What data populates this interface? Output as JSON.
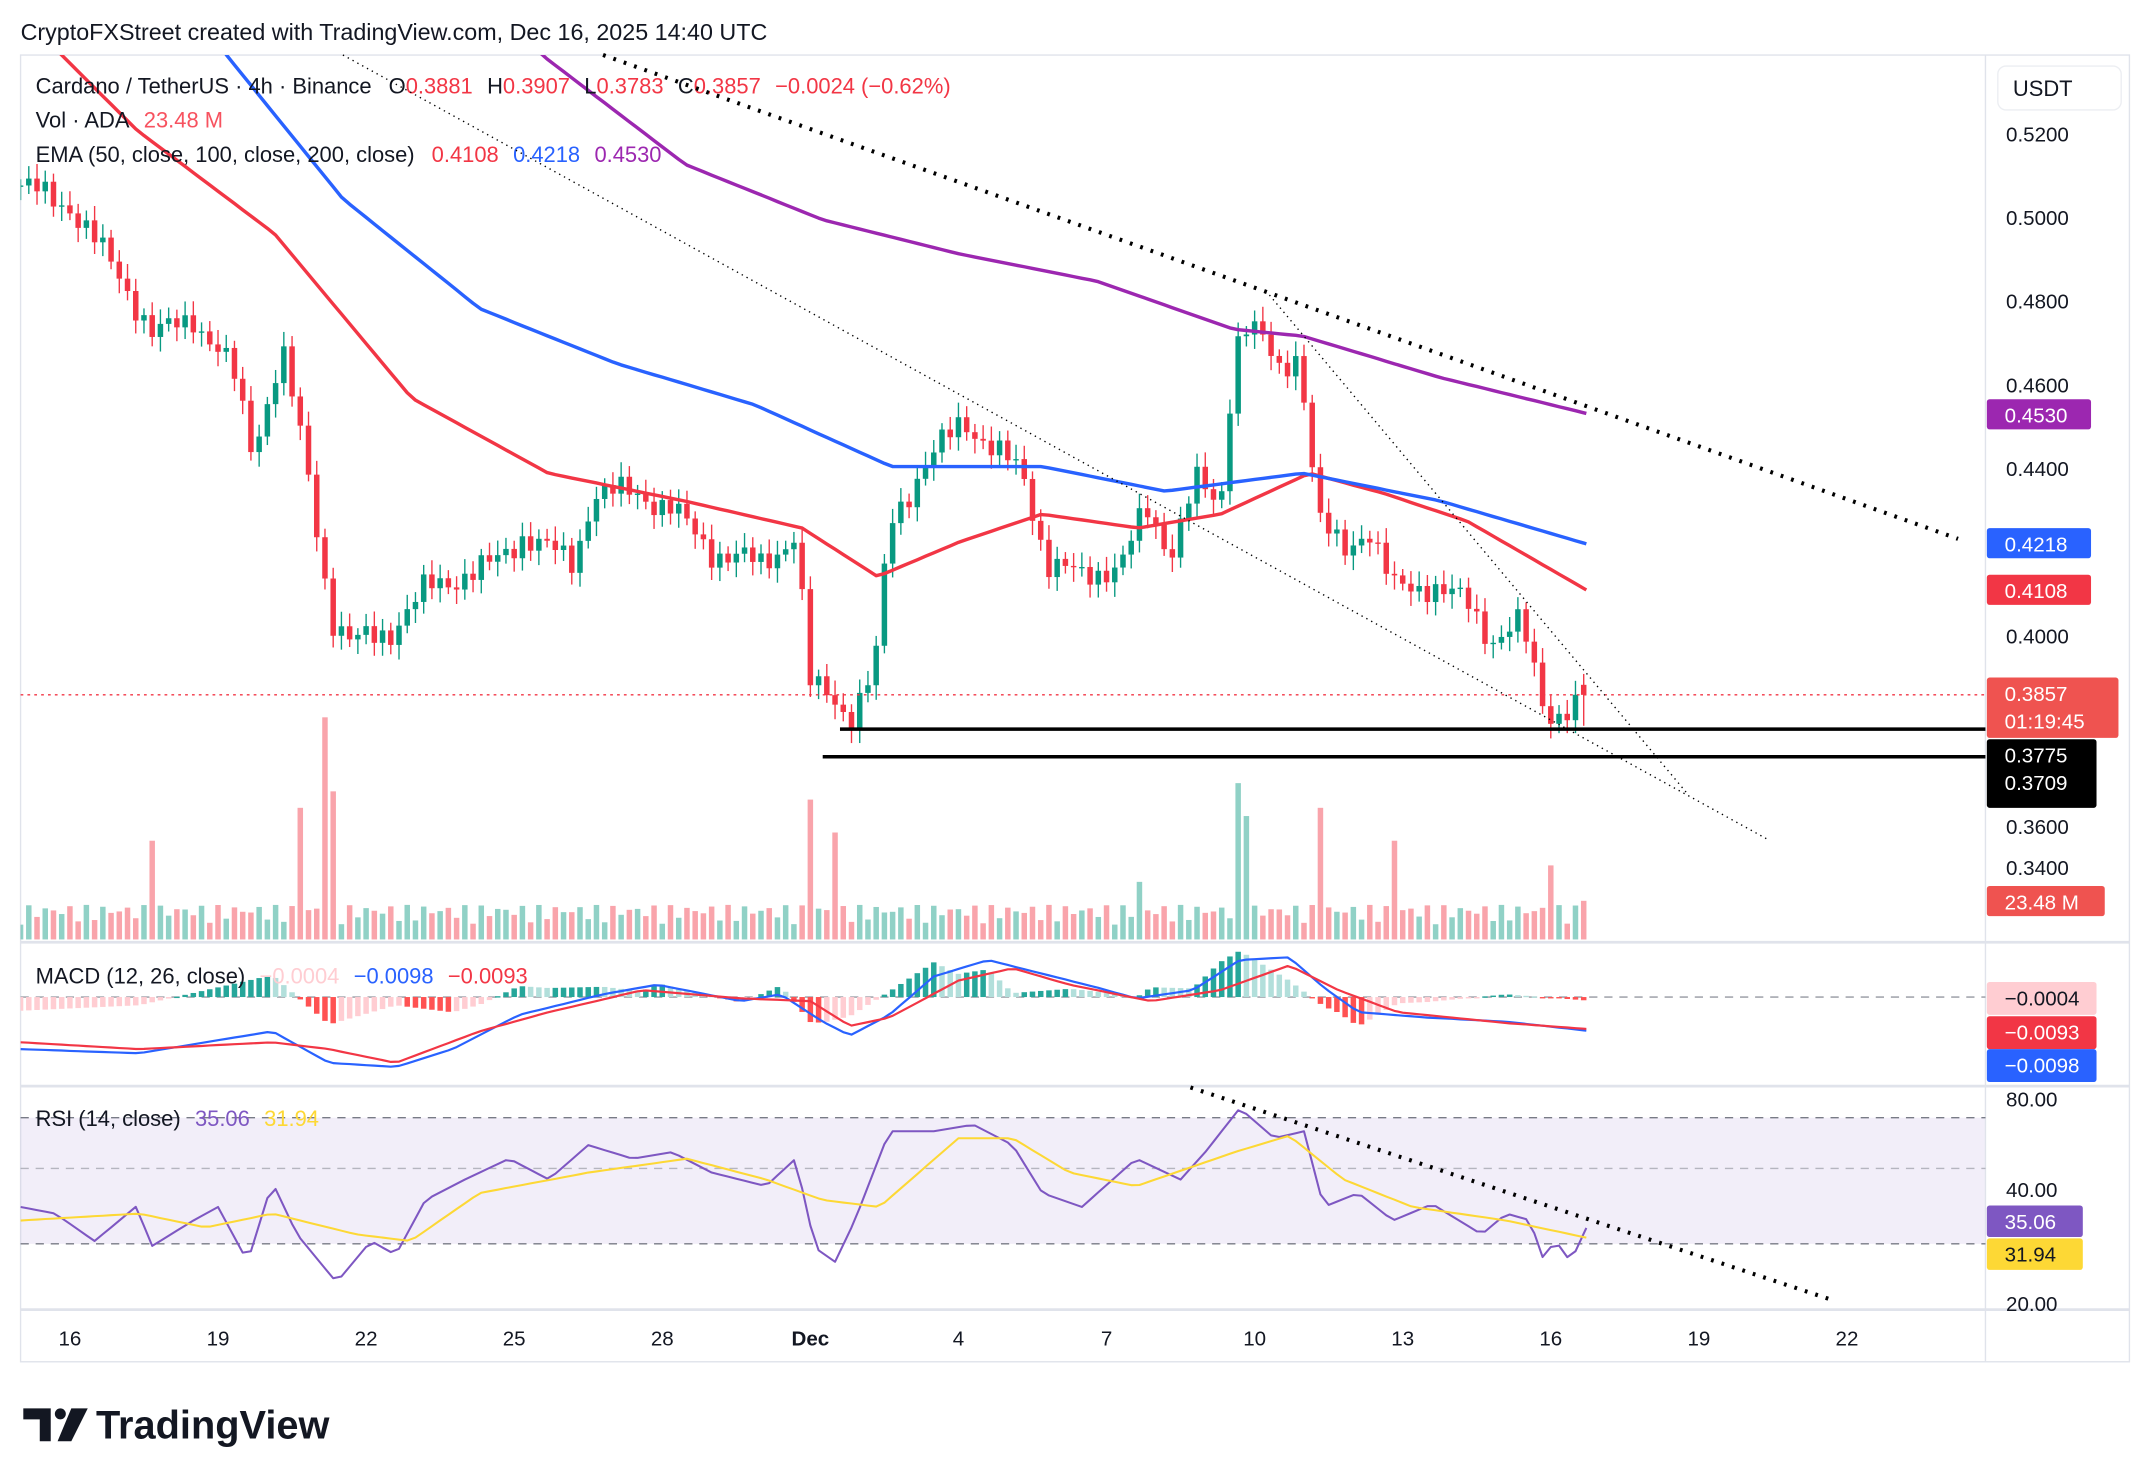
{
  "header": "CryptoFXStreet created with TradingView.com, Dec 16, 2025 14:40 UTC",
  "watermark": "TradingView",
  "currency": "USDT",
  "legend": {
    "symbol": "Cardano / TetherUS · 4h · Binance",
    "o_label": "O",
    "o": "0.3881",
    "h_label": "H",
    "h": "0.3907",
    "l_label": "L",
    "l": "0.3783",
    "c_label": "C",
    "c": "0.3857",
    "change": "−0.0024 (−0.62%)",
    "vol_label": "Vol · ADA",
    "vol": "23.48 M",
    "ema_label": "EMA (50, close, 100, close, 200, close)",
    "ema50": "0.4108",
    "ema100": "0.4218",
    "ema200": "0.4530",
    "macd_label": "MACD (12, 26, close)",
    "macd_hist": "−0.0004",
    "macd": "−0.0098",
    "macd_signal": "−0.0093",
    "rsi_label": "RSI (14, close)",
    "rsi": "35.06",
    "rsi_ma": "31.94"
  },
  "colors": {
    "up": "#089981",
    "down": "#f23645",
    "ema50": "#f23645",
    "ema100": "#2962ff",
    "ema200": "#9c27b0",
    "macd": "#2962ff",
    "signal": "#f23645",
    "rsi": "#7e57c2",
    "rsi_ma": "#fdd835"
  },
  "chart_data": {
    "type": "candlestick",
    "title": "Cardano / TetherUS · 4h · Binance",
    "x_unit": "days since Nov 15, 2025",
    "candles_per_day": 6,
    "price_ylim": [
      0.33,
      0.53
    ],
    "price_ticks": [
      "0.5200",
      "0.5000",
      "0.4800",
      "0.4600",
      "0.4400",
      "0.4000",
      "0.3600",
      "0.3400"
    ],
    "x_ticks": [
      {
        "day": 1,
        "label": "16"
      },
      {
        "day": 4,
        "label": "19"
      },
      {
        "day": 7,
        "label": "22"
      },
      {
        "day": 10,
        "label": "25"
      },
      {
        "day": 13,
        "label": "28"
      },
      {
        "day": 16,
        "label": "Dec"
      },
      {
        "day": 19,
        "label": "4"
      },
      {
        "day": 22,
        "label": "7"
      },
      {
        "day": 25,
        "label": "10"
      },
      {
        "day": 28,
        "label": "13"
      },
      {
        "day": 31,
        "label": "16"
      },
      {
        "day": 34,
        "label": "19"
      },
      {
        "day": 37,
        "label": "22"
      }
    ],
    "price_path": [
      [
        0,
        0.5075
      ],
      [
        1,
        0.5026
      ],
      [
        2,
        0.486
      ],
      [
        2.7,
        0.4715
      ],
      [
        3.5,
        0.476
      ],
      [
        4.3,
        0.463
      ],
      [
        4.7,
        0.444
      ],
      [
        5.3,
        0.468
      ],
      [
        5.8,
        0.44
      ],
      [
        6.3,
        0.404
      ],
      [
        6.7,
        0.398
      ],
      [
        7.5,
        0.401
      ],
      [
        8.2,
        0.411
      ],
      [
        9.6,
        0.417
      ],
      [
        10.2,
        0.424
      ],
      [
        11.2,
        0.417
      ],
      [
        11.6,
        0.434
      ],
      [
        12.5,
        0.434
      ],
      [
        13.2,
        0.43
      ],
      [
        14,
        0.42
      ],
      [
        15,
        0.417
      ],
      [
        15.7,
        0.424
      ],
      [
        16.0,
        0.388
      ],
      [
        16.5,
        0.385
      ],
      [
        16.8,
        0.38
      ],
      [
        17.3,
        0.391
      ],
      [
        17.6,
        0.427
      ],
      [
        18.3,
        0.44
      ],
      [
        19.1,
        0.452
      ],
      [
        19.7,
        0.444
      ],
      [
        20.3,
        0.439
      ],
      [
        20.8,
        0.417
      ],
      [
        21.5,
        0.414
      ],
      [
        22.3,
        0.417
      ],
      [
        22.8,
        0.43
      ],
      [
        23.3,
        0.42
      ],
      [
        23.8,
        0.437
      ],
      [
        24.3,
        0.43
      ],
      [
        24.6,
        0.47
      ],
      [
        24.9,
        0.475
      ],
      [
        25.5,
        0.463
      ],
      [
        25.9,
        0.468
      ],
      [
        26.3,
        0.427
      ],
      [
        26.8,
        0.42
      ],
      [
        27.3,
        0.426
      ],
      [
        27.8,
        0.411
      ],
      [
        28.6,
        0.412
      ],
      [
        29.3,
        0.4075
      ],
      [
        29.8,
        0.399
      ],
      [
        30.4,
        0.403
      ],
      [
        30.8,
        0.385
      ],
      [
        31.0,
        0.381
      ],
      [
        31.5,
        0.383
      ],
      [
        31.72,
        0.3857
      ]
    ],
    "last_candle": {
      "open": 0.3881,
      "high": 0.3907,
      "low": 0.3783,
      "close": 0.3857
    },
    "ema50": [
      [
        0,
        0.5485
      ],
      [
        2.36,
        0.5207
      ],
      [
        5.14,
        0.496
      ],
      [
        7.92,
        0.4567
      ],
      [
        10.69,
        0.4387
      ],
      [
        13.47,
        0.432
      ],
      [
        15.83,
        0.4256
      ],
      [
        17.36,
        0.414
      ],
      [
        19.03,
        0.4223
      ],
      [
        20.69,
        0.4289
      ],
      [
        22.64,
        0.4256
      ],
      [
        24.31,
        0.4289
      ],
      [
        26.11,
        0.4387
      ],
      [
        27.64,
        0.4338
      ],
      [
        29.31,
        0.4272
      ],
      [
        31.72,
        0.4108
      ]
    ],
    "ema100": [
      [
        2.5,
        0.575
      ],
      [
        4.17,
        0.5387
      ],
      [
        6.53,
        0.5043
      ],
      [
        9.31,
        0.478
      ],
      [
        12.08,
        0.4649
      ],
      [
        14.86,
        0.4551
      ],
      [
        17.64,
        0.4403
      ],
      [
        20.69,
        0.4403
      ],
      [
        23.19,
        0.4344
      ],
      [
        25.97,
        0.4387
      ],
      [
        28.75,
        0.4321
      ],
      [
        31.72,
        0.4218
      ]
    ],
    "ema200": [
      [
        9,
        0.56
      ],
      [
        10.56,
        0.5387
      ],
      [
        13.47,
        0.5125
      ],
      [
        16.25,
        0.4993
      ],
      [
        19.03,
        0.4911
      ],
      [
        21.81,
        0.4846
      ],
      [
        24.58,
        0.4731
      ],
      [
        25.97,
        0.4715
      ],
      [
        28.75,
        0.4616
      ],
      [
        31.72,
        0.453
      ]
    ],
    "volume": {
      "base_m": 15,
      "last_m": 23.48,
      "spikes": [
        [
          2.6,
          60
        ],
        [
          5.7,
          80
        ],
        [
          6.2,
          135
        ],
        [
          6.4,
          90
        ],
        [
          16.0,
          85
        ],
        [
          16.5,
          65
        ],
        [
          22.6,
          35
        ],
        [
          24.6,
          95
        ],
        [
          24.9,
          75
        ],
        [
          26.3,
          80
        ],
        [
          27.8,
          60
        ],
        [
          31.0,
          45
        ]
      ]
    },
    "trendlines": [
      {
        "style": "dotted-thick",
        "from": [
          11.8,
          0.5387
        ],
        "to": [
          39.25,
          0.423
        ]
      },
      {
        "style": "dotted-thin",
        "from": [
          6.53,
          0.5387
        ],
        "to": [
          35.4,
          0.3511
        ]
      },
      {
        "style": "dotted-thin",
        "from": [
          25.3,
          0.4813
        ],
        "to": [
          33.75,
          0.3623
        ]
      }
    ],
    "support_levels": [
      {
        "price": 0.3775,
        "label": "0.3775",
        "from_day": 16.6
      },
      {
        "price": 0.3709,
        "label": "0.3709",
        "from_day": 16.25
      }
    ],
    "current_price": {
      "label": "0.3857",
      "countdown": "01:19:45"
    },
    "macd": {
      "ylim": [
        -0.0235,
        0.0155
      ],
      "macd_line": [
        [
          0,
          -0.0152
        ],
        [
          2.4,
          -0.0164
        ],
        [
          3.75,
          -0.0132
        ],
        [
          5.1,
          -0.01
        ],
        [
          6.25,
          -0.0192
        ],
        [
          7.6,
          -0.0204
        ],
        [
          8.75,
          -0.0152
        ],
        [
          10.1,
          -0.0052
        ],
        [
          11.8,
          0.0008
        ],
        [
          12.9,
          0.0036
        ],
        [
          14.6,
          -0.0012
        ],
        [
          15.4,
          0.0008
        ],
        [
          16.25,
          -0.0072
        ],
        [
          16.8,
          -0.0112
        ],
        [
          17.6,
          -0.0052
        ],
        [
          18.5,
          0.006
        ],
        [
          19.6,
          0.0108
        ],
        [
          20.7,
          0.0068
        ],
        [
          21.8,
          0.0028
        ],
        [
          22.6,
          -0.0004
        ],
        [
          23.75,
          0.002
        ],
        [
          24.7,
          0.0108
        ],
        [
          25.7,
          0.0116
        ],
        [
          26.4,
          0.0028
        ],
        [
          27.1,
          -0.0044
        ],
        [
          28.5,
          -0.006
        ],
        [
          30.1,
          -0.0072
        ],
        [
          31.72,
          -0.0098
        ]
      ],
      "signal_line": [
        [
          0,
          -0.0132
        ],
        [
          2.4,
          -0.0152
        ],
        [
          5.1,
          -0.0132
        ],
        [
          6.25,
          -0.0152
        ],
        [
          7.6,
          -0.0192
        ],
        [
          9.3,
          -0.01
        ],
        [
          10.7,
          -0.0044
        ],
        [
          12.6,
          0.002
        ],
        [
          14.6,
          -0.0004
        ],
        [
          16,
          -0.0012
        ],
        [
          16.8,
          -0.0084
        ],
        [
          17.6,
          -0.006
        ],
        [
          19,
          0.0048
        ],
        [
          20.1,
          0.0084
        ],
        [
          21.25,
          0.0036
        ],
        [
          22.9,
          -0.0012
        ],
        [
          24.3,
          0.002
        ],
        [
          25.7,
          0.0092
        ],
        [
          26.7,
          0.002
        ],
        [
          27.9,
          -0.0044
        ],
        [
          30.1,
          -0.0076
        ],
        [
          31.72,
          -0.0093
        ]
      ]
    },
    "rsi": {
      "ylim": [
        16,
        81
      ],
      "bands": [
        70,
        50,
        30
      ],
      "ticks": [
        "80.00",
        "40.00",
        "20.00"
      ],
      "rsi_line": [
        [
          0,
          41.7
        ],
        [
          0.7,
          39.6
        ],
        [
          1.5,
          30.9
        ],
        [
          2.4,
          42.6
        ],
        [
          2.6,
          28.7
        ],
        [
          3.5,
          37.4
        ],
        [
          4,
          41.7
        ],
        [
          4.6,
          24.3
        ],
        [
          5.1,
          49.6
        ],
        [
          5.6,
          33
        ],
        [
          6.4,
          17.8
        ],
        [
          7.1,
          30.9
        ],
        [
          7.6,
          26.5
        ],
        [
          8.2,
          43.9
        ],
        [
          9,
          50.4
        ],
        [
          9.9,
          57
        ],
        [
          10.7,
          50.4
        ],
        [
          11.5,
          61.3
        ],
        [
          12.4,
          57
        ],
        [
          13.2,
          59.1
        ],
        [
          14,
          52.6
        ],
        [
          15.1,
          48.3
        ],
        [
          15.7,
          57
        ],
        [
          16.1,
          28.7
        ],
        [
          16.5,
          24.3
        ],
        [
          16.9,
          37.4
        ],
        [
          17.6,
          65.7
        ],
        [
          18.5,
          65.7
        ],
        [
          19.3,
          67.8
        ],
        [
          20.1,
          61.3
        ],
        [
          20.7,
          46.1
        ],
        [
          21.5,
          41.7
        ],
        [
          22.6,
          57
        ],
        [
          23.5,
          50.4
        ],
        [
          24,
          59.1
        ],
        [
          24.7,
          73
        ],
        [
          25.4,
          63.5
        ],
        [
          26,
          65.7
        ],
        [
          26.4,
          41.7
        ],
        [
          27.1,
          46.1
        ],
        [
          27.8,
          37.4
        ],
        [
          28.6,
          42.6
        ],
        [
          29.6,
          33
        ],
        [
          30.1,
          39.6
        ],
        [
          30.6,
          37.4
        ],
        [
          30.8,
          25.2
        ],
        [
          31.1,
          30.9
        ],
        [
          31.4,
          24.3
        ],
        [
          31.72,
          35.06
        ]
      ],
      "ma_line": [
        [
          0,
          37.4
        ],
        [
          2.4,
          39.6
        ],
        [
          3.75,
          35.2
        ],
        [
          5.1,
          39.6
        ],
        [
          6.8,
          33
        ],
        [
          7.9,
          30.9
        ],
        [
          9.3,
          46.1
        ],
        [
          11.5,
          52.6
        ],
        [
          13.5,
          57
        ],
        [
          15.1,
          50.4
        ],
        [
          16.25,
          43.9
        ],
        [
          17.4,
          41.7
        ],
        [
          19,
          63.5
        ],
        [
          20.1,
          63.5
        ],
        [
          21.25,
          52.6
        ],
        [
          22.6,
          48.3
        ],
        [
          24.6,
          59.1
        ],
        [
          25.7,
          64.3
        ],
        [
          26.8,
          50.4
        ],
        [
          28.2,
          41.7
        ],
        [
          30.1,
          37.4
        ],
        [
          31.72,
          31.94
        ]
      ],
      "trendline": {
        "from": [
          23.7,
          79.6
        ],
        "to": [
          36.7,
          12.2
        ]
      }
    }
  }
}
